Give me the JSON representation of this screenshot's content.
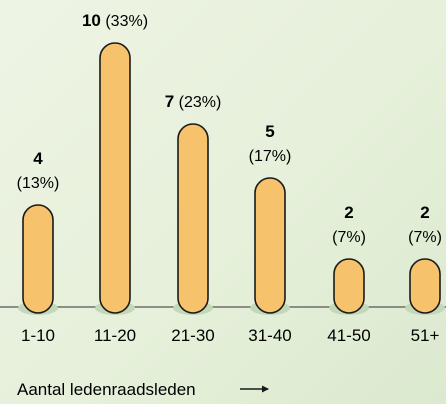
{
  "chart_data": {
    "type": "bar",
    "categories": [
      "1-10",
      "11-20",
      "21-30",
      "31-40",
      "41-50",
      "51+"
    ],
    "values": [
      4,
      10,
      7,
      5,
      2,
      2
    ],
    "percent_labels": [
      "(13%)",
      "(33%)",
      "(23%)",
      "(17%)",
      "(7%)",
      "(7%)"
    ],
    "xlabel": "Aantal ledenraadsleden",
    "xlabel_arrow": "→",
    "ylabel": "",
    "ylim": [
      0,
      10
    ],
    "grid": false,
    "colors": {
      "bar_fill": "#f6c26b",
      "bar_stroke": "#1a1a1a",
      "shadow": "#c3d8b8",
      "axis": "#555555",
      "text": "#1a1a1a"
    }
  }
}
